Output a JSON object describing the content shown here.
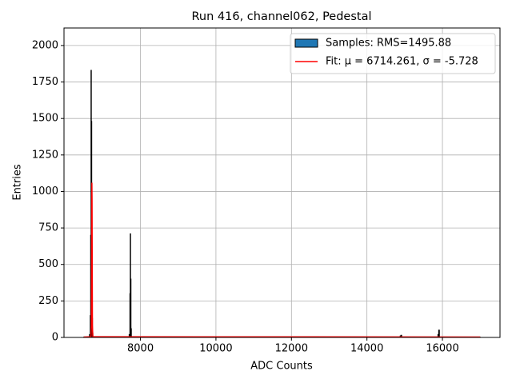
{
  "chart_data": {
    "type": "histogram",
    "title": "Run 416, channel062, Pedestal",
    "xlabel": "ADC Counts",
    "ylabel": "Entries",
    "bins": [
      6500,
      6650,
      6670,
      6680,
      6690,
      6700,
      6710,
      6720,
      6730,
      6740,
      6760,
      7700,
      7720,
      7730,
      7740,
      7750,
      7760,
      7780,
      14880,
      14900,
      14920,
      15880,
      15900,
      15920,
      17000
    ],
    "series": [
      {
        "name": "Samples: RMS=1495.88",
        "color": "#1f77b4",
        "edgecolor": "#000000",
        "values": [
          3,
          20,
          150,
          700,
          1830,
          1480,
          600,
          130,
          30,
          5,
          2,
          20,
          300,
          710,
          400,
          60,
          5,
          2,
          10,
          15,
          2,
          20,
          50,
          2
        ]
      },
      {
        "name": "Fit: μ = 6714.261, σ = -5.728",
        "color": "#ff0000",
        "x": [
          6500,
          6690,
          6700,
          6705,
          6710,
          6714,
          6718,
          6723,
          6728,
          6740,
          17000
        ],
        "values": [
          3,
          5,
          80,
          500,
          950,
          1060,
          950,
          500,
          80,
          5,
          3
        ]
      }
    ],
    "xlim": [
      5975,
      17525
    ],
    "ylim": [
      0,
      2120
    ],
    "xticks": [
      8000,
      10000,
      12000,
      14000,
      16000
    ],
    "yticks": [
      0,
      250,
      500,
      750,
      1000,
      1250,
      1500,
      1750,
      2000
    ],
    "grid": true,
    "legend": "upper right"
  }
}
